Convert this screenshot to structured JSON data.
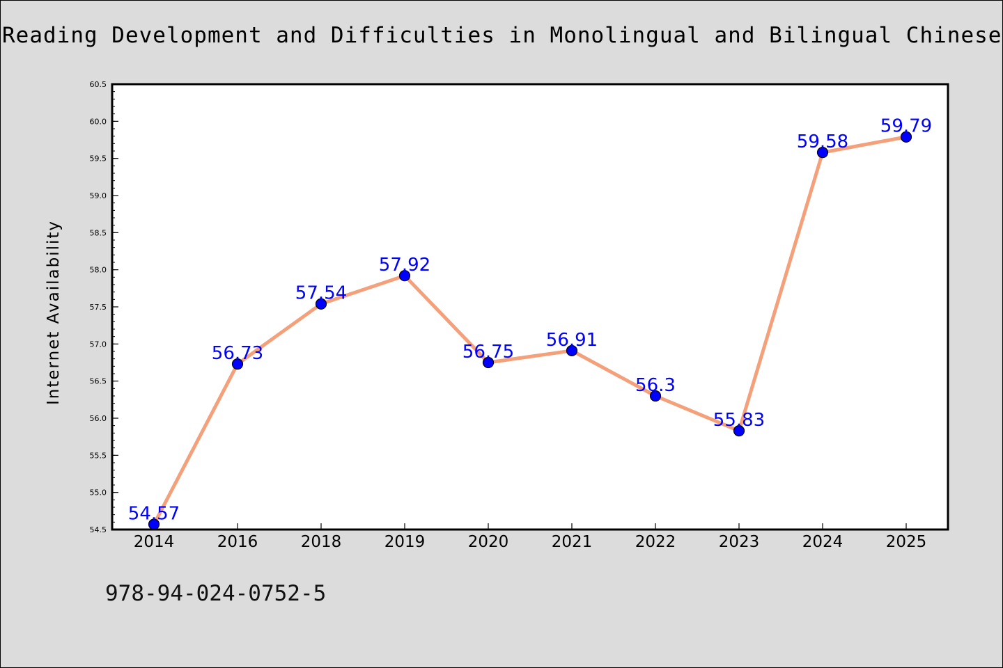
{
  "figure": {
    "title": "Reading Development and Difficulties in Monolingual and Bilingual Chinese Childr",
    "footer_text": "978-94-024-0752-5"
  },
  "colors": {
    "background": "#dcdcdc",
    "plot_background": "#ffffff",
    "line": "#f4a07a",
    "marker": "#0000ff",
    "data_label": "#0000ff"
  },
  "chart_data": {
    "type": "line",
    "title": "Reading Development and Difficulties in Monolingual and Bilingual Chinese Childr",
    "xlabel": "",
    "ylabel": "Internet Availability",
    "categories": [
      "2014",
      "2016",
      "2018",
      "2019",
      "2020",
      "2021",
      "2022",
      "2023",
      "2024",
      "2025"
    ],
    "series": [
      {
        "values": [
          54.57,
          56.73,
          57.54,
          57.92,
          56.75,
          56.91,
          56.3,
          55.83,
          59.58,
          59.79
        ],
        "labels": [
          "54.57",
          "56.73",
          "57.54",
          "57.92",
          "56.75",
          "56.91",
          "56.3",
          "55.83",
          "59.58",
          "59.79"
        ]
      }
    ],
    "ylim": [
      54.5,
      60.5
    ],
    "yticks": [
      "54.5",
      "55.0",
      "55.5",
      "56.0",
      "56.5",
      "57.0",
      "57.5",
      "58.0",
      "58.5",
      "59.0",
      "59.5",
      "60.0",
      "60.5"
    ],
    "grid": false,
    "legend": "none",
    "markers": "circle"
  }
}
